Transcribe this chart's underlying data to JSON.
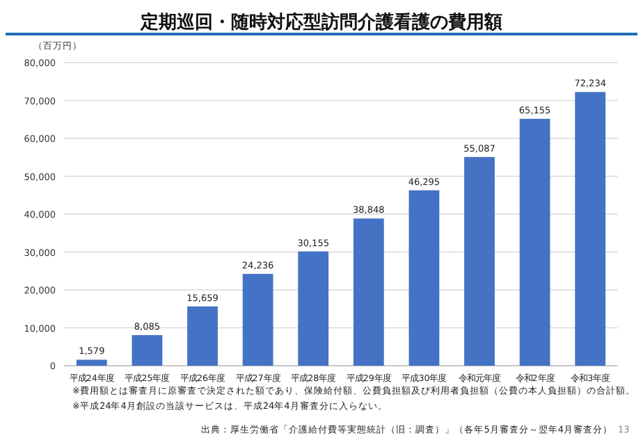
{
  "chart_data": {
    "type": "bar",
    "title": "定期巡回・随時対応型訪問介護看護の費用額",
    "ylabel": "（百万円）",
    "categories": [
      "平成24年度",
      "平成25年度",
      "平成26年度",
      "平成27年度",
      "平成28年度",
      "平成29年度",
      "平成30年度",
      "令和元年度",
      "令和2年度",
      "令和3年度"
    ],
    "values": [
      1579,
      8085,
      15659,
      24236,
      30155,
      38848,
      46295,
      55087,
      65155,
      72234
    ],
    "value_labels": [
      "1,579",
      "8,085",
      "15,659",
      "24,236",
      "30,155",
      "38,848",
      "46,295",
      "55,087",
      "65,155",
      "72,234"
    ],
    "color": "#4472c4",
    "grid": "y",
    "ylim": [
      0,
      80000
    ],
    "yticks": [
      0,
      {
        "value": 10000,
        "label": "10,000"
      },
      {
        "value": 20000,
        "label": "20,000"
      },
      {
        "value": 30000,
        "label": "30,000"
      },
      {
        "value": 40000,
        "label": "40,000"
      },
      {
        "value": 50000,
        "label": "50,000"
      },
      {
        "value": 60000,
        "label": "60,000"
      },
      {
        "value": 70000,
        "label": "70,000"
      },
      {
        "value": 80000,
        "label": "80,000"
      }
    ],
    "annotations": [
      "※費用額とは審査月に原審査で決定された額であり、保険給付額、公費負担額及び利用者負担額（公費の本人負担額）の合計額。",
      "※平成24年4月創設の当該サービスは、平成24年4月審査分に入らない。",
      "出典：厚生労働省「介護給付費等実態統計（旧：調査）」（各年5月審査分～翌年4月審査分）",
      "13"
    ]
  }
}
